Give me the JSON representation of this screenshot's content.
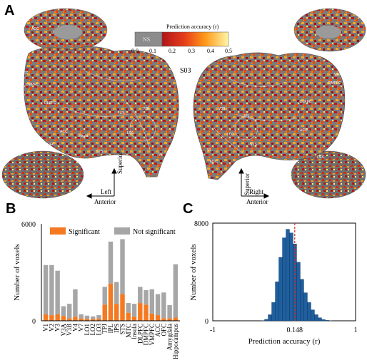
{
  "panel_labels": {
    "a": "A",
    "b": "B",
    "c": "C"
  },
  "panel_a": {
    "subject": "S03",
    "colorbar": {
      "title": "Prediction accuracy (r)",
      "ns_label": "NS",
      "ticks": [
        "0.0",
        "0.1",
        "0.2",
        "0.3",
        "0.4",
        "0.5"
      ]
    },
    "orientation_left": {
      "anterior": "Anterior",
      "superior": "Superior",
      "side": "Left"
    },
    "orientation_right": {
      "anterior": "Anterior",
      "superior": "Superior",
      "side": "Right"
    },
    "left_roi_labels": [
      "OFC",
      "VMPFC",
      "DMPFC",
      "DLPFC",
      "ACC",
      "OFC",
      "IPL",
      "LO1",
      "V3B",
      "STS",
      "MTC",
      "V1",
      "ACC",
      "Insula"
    ],
    "right_roi_labels": [
      "OFC",
      "VMPFC",
      "DMPFC",
      "DLPFC",
      "ACC",
      "IPL",
      "STS",
      "LO1",
      "V3B",
      "MTC",
      "V1",
      "OFC"
    ],
    "colors": {
      "ns": "#8c8c8c",
      "low": "#b8141a",
      "mid": "#ff8c00",
      "high": "#fff176"
    }
  },
  "chart_data": [
    {
      "type": "bar",
      "panel": "B",
      "ylabel": "Number of voxels",
      "ylim": [
        0,
        6000
      ],
      "yticks": [
        "0",
        "6000"
      ],
      "stacked": true,
      "legend_position": "top",
      "categories": [
        "V1",
        "V2",
        "V3",
        "V3A",
        "V3B",
        "V4",
        "V7",
        "LO1",
        "LO2",
        "LO3",
        "TPJ",
        "IPL",
        "IPS",
        "STS",
        "MTC",
        "Insula",
        "DLPFC",
        "DMPFC",
        "VMPFC",
        "ACC",
        "OFC",
        "Amygdala",
        "Hippocampus"
      ],
      "series": [
        {
          "name": "Significant",
          "color": "#f47920",
          "values": [
            400,
            350,
            400,
            300,
            150,
            250,
            150,
            120,
            120,
            130,
            1000,
            2300,
            1050,
            1650,
            500,
            250,
            1100,
            1000,
            450,
            350,
            150,
            150,
            200
          ]
        },
        {
          "name": "Not significant",
          "color": "#a6a6a6",
          "values": [
            3050,
            3100,
            2700,
            600,
            900,
            1700,
            250,
            200,
            150,
            220,
            1100,
            2600,
            1350,
            3400,
            600,
            800,
            1000,
            900,
            1500,
            1300,
            1600,
            820,
            3300
          ]
        }
      ]
    },
    {
      "type": "histogram",
      "panel": "C",
      "xlabel": "Prediction accuracy (r)",
      "ylabel": "Number of voxels",
      "xlim": [
        -1,
        1
      ],
      "ylim": [
        0,
        8000
      ],
      "xticks": [
        "-1",
        "0.148",
        "1"
      ],
      "yticks": [
        "0",
        "8000"
      ],
      "mean_line": 0.148,
      "bar_color": "#1f5f9e",
      "mean_line_color": "#d62728",
      "bin_centers": [
        -0.3,
        -0.25,
        -0.2,
        -0.15,
        -0.1,
        -0.05,
        0.0,
        0.05,
        0.1,
        0.15,
        0.2,
        0.25,
        0.3,
        0.35,
        0.4,
        0.45,
        0.5,
        0.55,
        0.6,
        0.65
      ],
      "counts": [
        20,
        120,
        500,
        1500,
        3200,
        5200,
        6800,
        7500,
        7200,
        6300,
        4800,
        3400,
        2300,
        1500,
        900,
        500,
        250,
        100,
        40,
        10
      ]
    }
  ]
}
